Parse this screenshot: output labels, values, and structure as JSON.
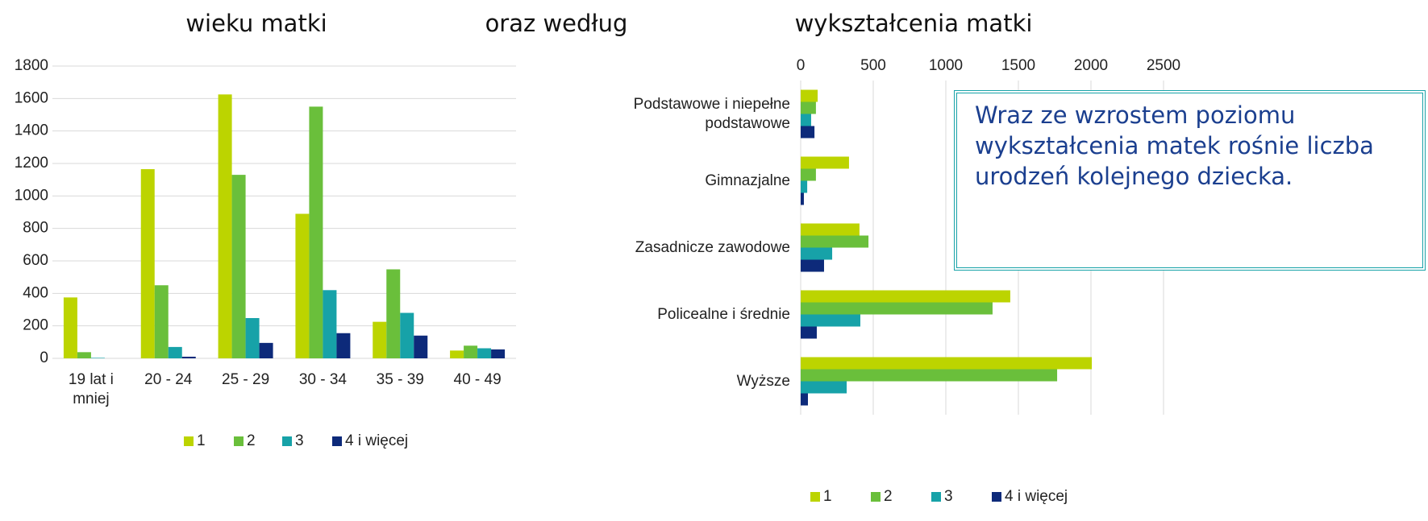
{
  "header": "oraz według",
  "callout": "Wraz ze wzrostem poziomu wykształcenia matek rośnie liczba urodzeń kolejnego dziecka.",
  "chart_data": [
    {
      "type": "bar",
      "title": "wieku matki",
      "categories": [
        "19 lat i mniej",
        "20 - 24",
        "25 - 29",
        "30 - 34",
        "35 - 39",
        "40 - 49"
      ],
      "series": [
        {
          "name": "1",
          "color": "#bcd400",
          "values": [
            375,
            1165,
            1625,
            890,
            225,
            48
          ]
        },
        {
          "name": "2",
          "color": "#6abf3b",
          "values": [
            38,
            450,
            1130,
            1550,
            548,
            78
          ]
        },
        {
          "name": "3",
          "color": "#17a2a8",
          "values": [
            3,
            70,
            248,
            420,
            280,
            62
          ]
        },
        {
          "name": "4 i więcej",
          "color": "#0d2a7a",
          "values": [
            0,
            10,
            95,
            155,
            140,
            55
          ]
        }
      ],
      "ylim": [
        0,
        1800
      ],
      "yticks": [
        0,
        200,
        400,
        600,
        800,
        1000,
        1200,
        1400,
        1600,
        1800
      ],
      "grid": true
    },
    {
      "type": "hbar",
      "title": "wykształcenia matki",
      "categories": [
        "Podstawowe i niepełne podstawowe",
        "Gimnazjalne",
        "Zasadnicze zawodowe",
        "Policealne i średnie",
        "Wyższe"
      ],
      "series": [
        {
          "name": "1",
          "color": "#bcd400",
          "values": [
            117,
            333,
            405,
            1444,
            2006
          ]
        },
        {
          "name": "2",
          "color": "#6abf3b",
          "values": [
            105,
            105,
            467,
            1322,
            1767
          ]
        },
        {
          "name": "3",
          "color": "#17a2a8",
          "values": [
            72,
            45,
            217,
            411,
            317
          ]
        },
        {
          "name": "4 i więcej",
          "color": "#0d2a7a",
          "values": [
            95,
            22,
            161,
            111,
            50
          ]
        }
      ],
      "xlim": [
        0,
        2500
      ],
      "xticks": [
        0,
        500,
        1000,
        1500,
        2000,
        2500
      ],
      "grid": true
    }
  ]
}
